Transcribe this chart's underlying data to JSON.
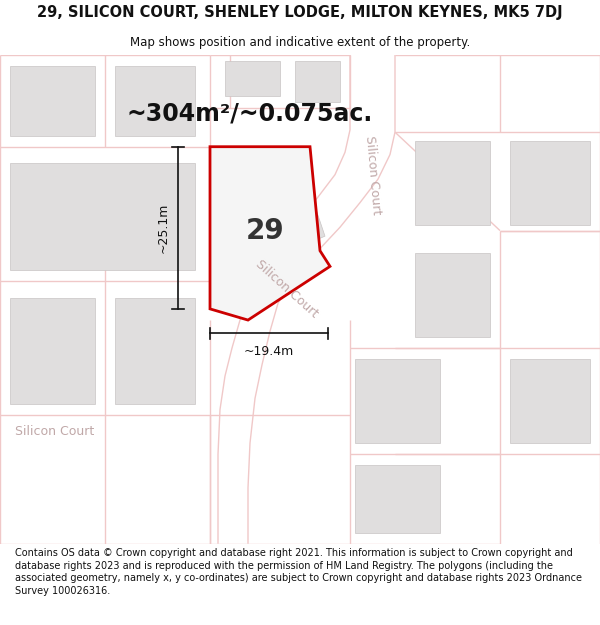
{
  "title": "29, SILICON COURT, SHENLEY LODGE, MILTON KEYNES, MK5 7DJ",
  "subtitle": "Map shows position and indicative extent of the property.",
  "footer": "Contains OS data © Crown copyright and database right 2021. This information is subject to Crown copyright and database rights 2023 and is reproduced with the permission of\nHM Land Registry. The polygons (including the associated geometry, namely x, y\nco-ordinates) are subject to Crown copyright and database rights 2023 Ordnance Survey\n100026316.",
  "area_label": "~304m²/~0.075ac.",
  "width_label": "~19.4m",
  "height_label": "~25.1m",
  "plot_number": "29",
  "bg_color": "#ffffff",
  "map_bg": "#ffffff",
  "road_color": "#f0c8c8",
  "plot_outline_color": "#cc0000",
  "building_fill": "#e0dede",
  "building_edge": "#c8c4c4",
  "street_label_color": "#c0a8a8",
  "road_fill_color": "#faf0f0",
  "dim_color": "#111111",
  "title_fontsize": 10.5,
  "subtitle_fontsize": 8.5,
  "footer_fontsize": 7.0,
  "area_label_fontsize": 17,
  "plot_number_fontsize": 20,
  "dim_fontsize": 9,
  "street_fontsize": 9
}
